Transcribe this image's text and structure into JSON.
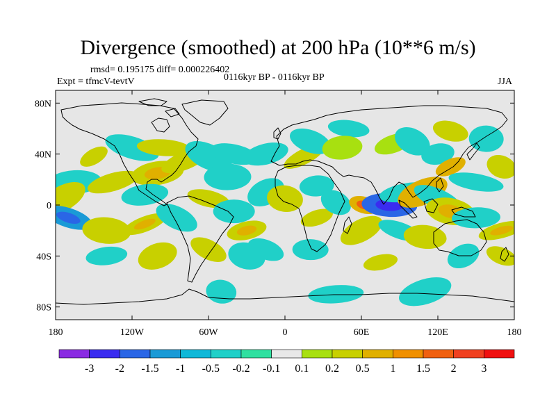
{
  "title": "Divergence (smoothed) at 200 hPa (10**6 m/s)",
  "stats": "rmsd= 0.195175 diff= 0.000226402",
  "experiment": "Expt = tfmcV-tevtV",
  "period": "0116kyr BP - 0116kyr BP",
  "season": "JJA",
  "map": {
    "lon_range": [
      -180,
      180
    ],
    "lat_range": [
      -90,
      90
    ],
    "background_color": "#e6e6e6",
    "lat_ticks": [
      {
        "value": 80,
        "label": "80N"
      },
      {
        "value": 40,
        "label": "40N"
      },
      {
        "value": 0,
        "label": "0"
      },
      {
        "value": -40,
        "label": "40S"
      },
      {
        "value": -80,
        "label": "80S"
      }
    ],
    "lon_ticks": [
      {
        "value": -180,
        "label": "180"
      },
      {
        "value": -120,
        "label": "120W"
      },
      {
        "value": -60,
        "label": "60W"
      },
      {
        "value": 0,
        "label": "0"
      },
      {
        "value": 60,
        "label": "60E"
      },
      {
        "value": 120,
        "label": "120E"
      },
      {
        "value": 180,
        "label": "180"
      }
    ]
  },
  "colorbar": {
    "colors": [
      "#8a2be2",
      "#3a2cf0",
      "#2a66e6",
      "#1a9ad6",
      "#10b8d8",
      "#20d0c8",
      "#30e0a0",
      "#e8e8e8",
      "#a8e010",
      "#c8d000",
      "#e0b000",
      "#f09000",
      "#f06010",
      "#f04020",
      "#f01010"
    ],
    "labels": [
      "-3",
      "-2",
      "-1.5",
      "-1",
      "-0.5",
      "-0.2",
      "-0.1",
      "0.1",
      "0.2",
      "0.5",
      "1",
      "1.5",
      "2",
      "3"
    ]
  },
  "chart_data": {
    "type": "heatmap",
    "title": "Divergence (smoothed) at 200 hPa (10**6 m/s)",
    "projection": "cylindrical-equidistant",
    "xlim": [
      -180,
      180
    ],
    "ylim": [
      -90,
      90
    ],
    "levels": [
      -3,
      -2,
      -1.5,
      -1,
      -0.5,
      -0.2,
      -0.1,
      0.1,
      0.2,
      0.5,
      1,
      1.5,
      2,
      3
    ],
    "features": [
      {
        "lon": -150,
        "lat": 38,
        "value": 0.3
      },
      {
        "lon": -120,
        "lat": 45,
        "value": -0.3
      },
      {
        "lon": -95,
        "lat": 45,
        "value": 0.3
      },
      {
        "lon": -100,
        "lat": 25,
        "value": 0.5
      },
      {
        "lon": -78,
        "lat": 35,
        "value": 0.3
      },
      {
        "lon": -60,
        "lat": 38,
        "value": -0.3
      },
      {
        "lon": -40,
        "lat": 40,
        "value": -0.2
      },
      {
        "lon": -45,
        "lat": 22,
        "value": -0.3
      },
      {
        "lon": -15,
        "lat": 40,
        "value": -0.2
      },
      {
        "lon": 15,
        "lat": 38,
        "value": 0.3
      },
      {
        "lon": 20,
        "lat": 50,
        "value": -0.2
      },
      {
        "lon": 50,
        "lat": 60,
        "value": -0.2
      },
      {
        "lon": 45,
        "lat": 45,
        "value": 0.2
      },
      {
        "lon": 85,
        "lat": 48,
        "value": 0.2
      },
      {
        "lon": 100,
        "lat": 50,
        "value": -0.2
      },
      {
        "lon": 130,
        "lat": 58,
        "value": 0.3
      },
      {
        "lon": 158,
        "lat": 52,
        "value": -0.2
      },
      {
        "lon": 120,
        "lat": 40,
        "value": -0.3
      },
      {
        "lon": 130,
        "lat": 30,
        "value": 0.6
      },
      {
        "lon": 170,
        "lat": 30,
        "value": 0.3
      },
      {
        "lon": 150,
        "lat": 18,
        "value": -0.2
      },
      {
        "lon": -165,
        "lat": 18,
        "value": -0.2
      },
      {
        "lon": -135,
        "lat": 18,
        "value": 0.3
      },
      {
        "lon": -175,
        "lat": 5,
        "value": 0.3
      },
      {
        "lon": -170,
        "lat": -10,
        "value": -1
      },
      {
        "lon": -140,
        "lat": -20,
        "value": 0.3
      },
      {
        "lon": -110,
        "lat": 8,
        "value": -0.3
      },
      {
        "lon": -110,
        "lat": -15,
        "value": 0.5
      },
      {
        "lon": -85,
        "lat": -10,
        "value": -0.3
      },
      {
        "lon": -60,
        "lat": 5,
        "value": 0.3
      },
      {
        "lon": -40,
        "lat": -5,
        "value": -0.2
      },
      {
        "lon": -30,
        "lat": -20,
        "value": 0.5
      },
      {
        "lon": -15,
        "lat": 10,
        "value": -0.3
      },
      {
        "lon": -15,
        "lat": -35,
        "value": -0.2
      },
      {
        "lon": 0,
        "lat": 5,
        "value": 0.3
      },
      {
        "lon": 25,
        "lat": 15,
        "value": -0.3
      },
      {
        "lon": 25,
        "lat": -10,
        "value": 0.3
      },
      {
        "lon": 40,
        "lat": 2,
        "value": -0.3
      },
      {
        "lon": 62,
        "lat": 0,
        "value": 1
      },
      {
        "lon": 82,
        "lat": 0,
        "value": -1.5
      },
      {
        "lon": 95,
        "lat": 10,
        "value": -0.3
      },
      {
        "lon": 108,
        "lat": 10,
        "value": 0.6
      },
      {
        "lon": 120,
        "lat": 5,
        "value": -0.3
      },
      {
        "lon": 130,
        "lat": -5,
        "value": 0.5
      },
      {
        "lon": 150,
        "lat": -10,
        "value": -0.3
      },
      {
        "lon": 170,
        "lat": -20,
        "value": 0.5
      },
      {
        "lon": 60,
        "lat": -20,
        "value": 0.3
      },
      {
        "lon": 90,
        "lat": -20,
        "value": -0.3
      },
      {
        "lon": 110,
        "lat": -25,
        "value": 0.3
      },
      {
        "lon": -140,
        "lat": -40,
        "value": -0.3
      },
      {
        "lon": -100,
        "lat": -40,
        "value": 0.3
      },
      {
        "lon": -60,
        "lat": -35,
        "value": 0.4
      },
      {
        "lon": -30,
        "lat": -40,
        "value": -0.2
      },
      {
        "lon": 20,
        "lat": -35,
        "value": -0.2
      },
      {
        "lon": 75,
        "lat": -45,
        "value": 0.3
      },
      {
        "lon": 140,
        "lat": -40,
        "value": -0.2
      },
      {
        "lon": 170,
        "lat": -40,
        "value": 0.4
      },
      {
        "lon": -50,
        "lat": -68,
        "value": -0.2
      },
      {
        "lon": 40,
        "lat": -70,
        "value": -0.2
      },
      {
        "lon": 110,
        "lat": -68,
        "value": -0.2
      }
    ]
  }
}
